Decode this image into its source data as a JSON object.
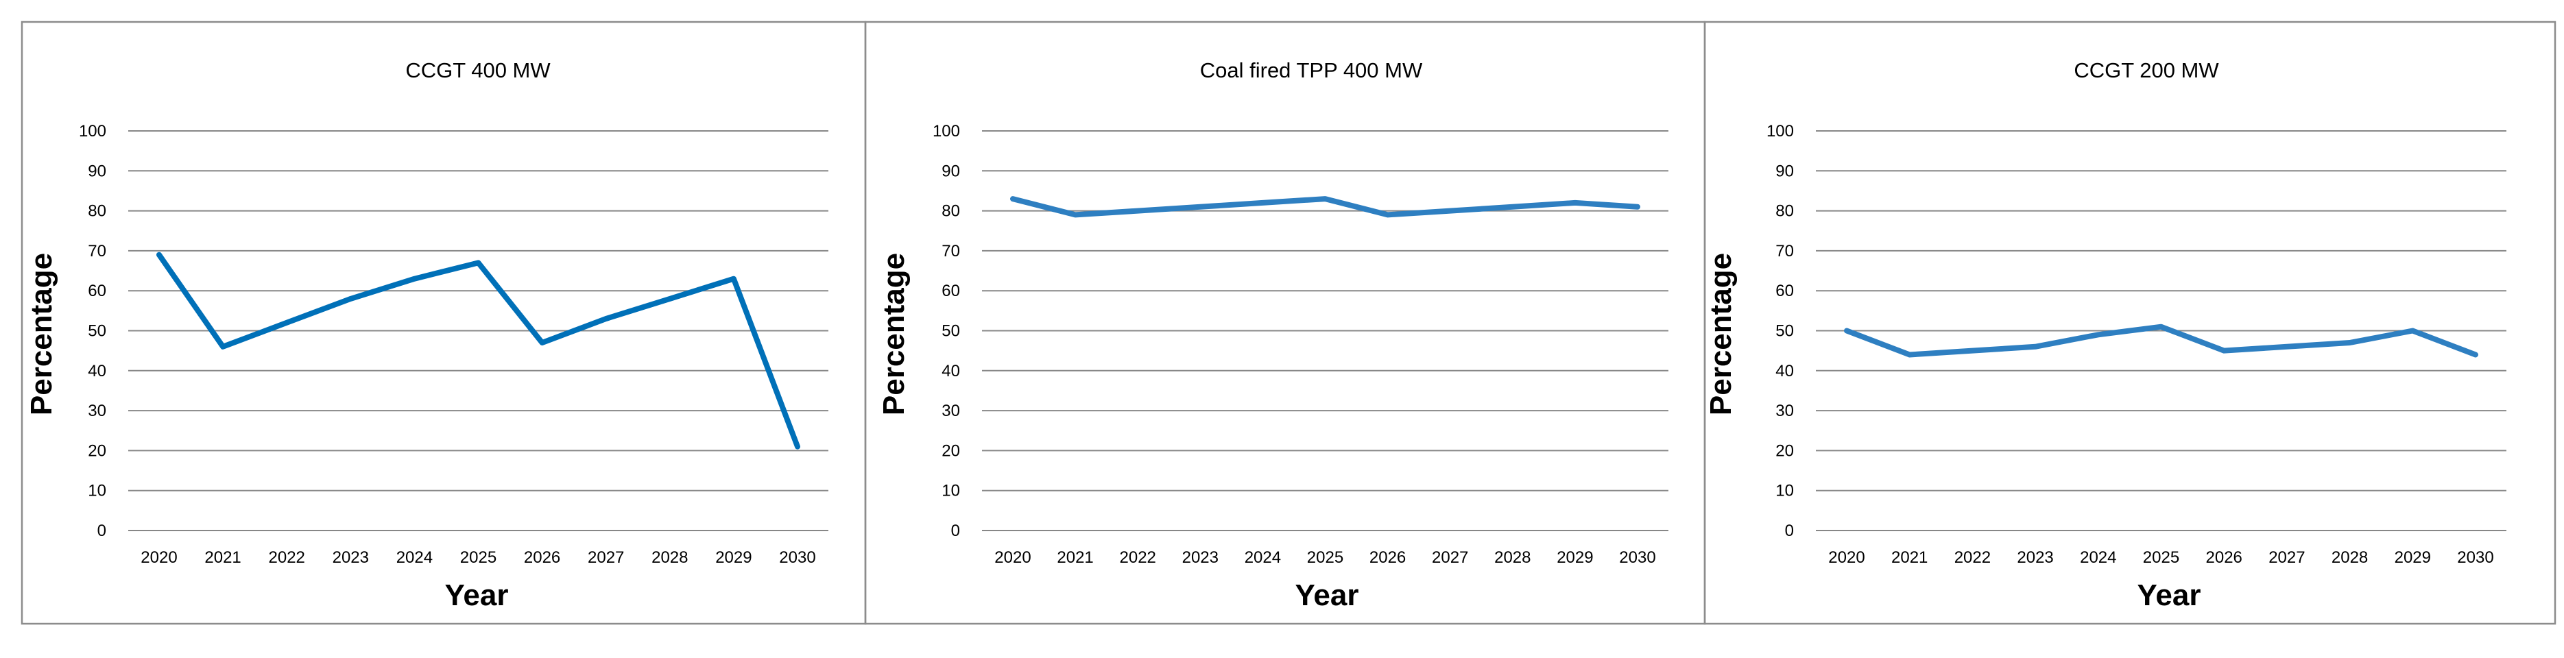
{
  "colors": {
    "background": "#ffffff",
    "gridline": "#878787",
    "panel_border": "#8c8c8c",
    "series_bold": "#0070b8",
    "series_light": "#2e7fc1"
  },
  "chart_data": [
    {
      "type": "line",
      "title": "CCGT 400 MW",
      "xlabel": "Year",
      "ylabel": "Percentage",
      "ylim": [
        0,
        100
      ],
      "yticks": [
        "0",
        "10",
        "20",
        "30",
        "40",
        "50",
        "60",
        "70",
        "80",
        "90",
        "100"
      ],
      "grid": true,
      "categories": [
        "2020",
        "2021",
        "2022",
        "2023",
        "2024",
        "2025",
        "2026",
        "2027",
        "2028",
        "2029",
        "2030"
      ],
      "series": [
        {
          "name": "CCGT 400 MW",
          "color": "#0070b8",
          "values": [
            69,
            46,
            52,
            58,
            63,
            67,
            47,
            53,
            58,
            63,
            21
          ]
        }
      ]
    },
    {
      "type": "line",
      "title": "Coal fired TPP 400 MW",
      "xlabel": "Year",
      "ylabel": "Percentage",
      "ylim": [
        0,
        100
      ],
      "yticks": [
        "0",
        "10",
        "20",
        "30",
        "40",
        "50",
        "60",
        "70",
        "80",
        "90",
        "100"
      ],
      "grid": true,
      "categories": [
        "2020",
        "2021",
        "2022",
        "2023",
        "2024",
        "2025",
        "2026",
        "2027",
        "2028",
        "2029",
        "2030"
      ],
      "series": [
        {
          "name": "Coal fired TPP 400 MW",
          "color": "#2e7fc1",
          "values": [
            83,
            79,
            80,
            81,
            82,
            83,
            79,
            80,
            81,
            82,
            81
          ]
        }
      ]
    },
    {
      "type": "line",
      "title": "CCGT 200 MW",
      "xlabel": "Year",
      "ylabel": "Percentage",
      "ylim": [
        0,
        100
      ],
      "yticks": [
        "0",
        "10",
        "20",
        "30",
        "40",
        "50",
        "60",
        "70",
        "80",
        "90",
        "100"
      ],
      "grid": true,
      "categories": [
        "2020",
        "2021",
        "2022",
        "2023",
        "2024",
        "2025",
        "2026",
        "2027",
        "2028",
        "2029",
        "2030"
      ],
      "series": [
        {
          "name": "CCGT 200 MW",
          "color": "#2e7fc1",
          "values": [
            50,
            44,
            45,
            46,
            49,
            51,
            45,
            46,
            47,
            50,
            44
          ]
        }
      ]
    }
  ]
}
